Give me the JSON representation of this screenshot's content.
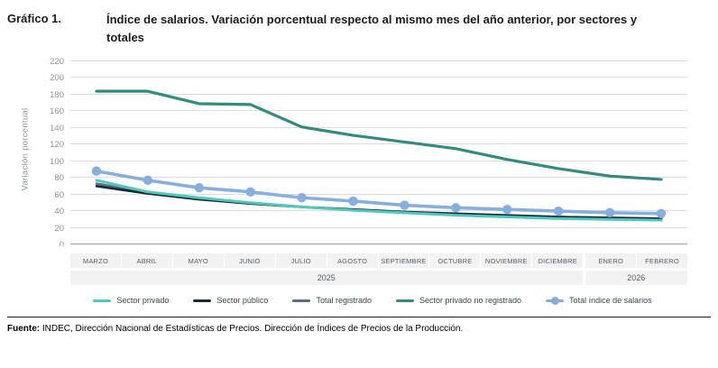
{
  "header": {
    "label": "Gráfico 1.",
    "title": "Índice de salarios. Variación porcentual respecto al mismo mes del año anterior, por sectores y totales"
  },
  "chart_data": {
    "type": "line",
    "title": "Índice de salarios. Variación porcentual respecto al mismo mes del año anterior, por sectores y totales",
    "ylabel": "Variación porcentual",
    "xlabel": "",
    "ylim": [
      0,
      220
    ],
    "ytick_step": 20,
    "grid": true,
    "legend_position": "bottom",
    "categories": [
      "MARZO",
      "ABRIL",
      "MAYO",
      "JUNIO",
      "JULIO",
      "AGOSTO",
      "SEPTIEMBRE",
      "OCTUBRE",
      "NOVIEMBRE",
      "DICIEMBRE",
      "ENERO",
      "FEBRERO"
    ],
    "year_groups": [
      {
        "label": "2025",
        "span": 10
      },
      {
        "label": "2026",
        "span": 2
      }
    ],
    "series": [
      {
        "id": "sector-privado",
        "name": "Sector privado",
        "color": "#4ec9bd",
        "width": 3,
        "marker": false,
        "z": 3,
        "values": [
          76,
          62,
          55,
          49,
          44,
          40,
          37,
          34,
          32,
          30,
          29,
          28
        ]
      },
      {
        "id": "sector-publico",
        "name": "Sector público",
        "color": "#1b2836",
        "width": 2.6,
        "marker": false,
        "z": 2,
        "values": [
          69,
          60,
          53,
          48,
          44,
          41,
          38,
          36,
          34,
          32,
          31,
          30
        ]
      },
      {
        "id": "total-registrado",
        "name": "Total registrado",
        "color": "#5e6e7e",
        "width": 2.6,
        "marker": false,
        "z": 1,
        "values": [
          72,
          61,
          54,
          48,
          44,
          40,
          37,
          35,
          33,
          31,
          30,
          29
        ]
      },
      {
        "id": "sector-privado-no-registrado",
        "name": "Sector privado no registrado",
        "color": "#338b7e",
        "width": 3.2,
        "marker": false,
        "z": 4,
        "values": [
          183,
          183,
          168,
          167,
          140,
          130,
          122,
          114,
          101,
          90,
          81,
          77
        ]
      },
      {
        "id": "total-indice-salarios",
        "name": "Total índice de salarios",
        "color": "#88aedd",
        "width": 3.6,
        "marker": true,
        "z": 5,
        "values": [
          87,
          76,
          67,
          62,
          55,
          51,
          46,
          43,
          41,
          39,
          37,
          36
        ]
      }
    ]
  },
  "footer": {
    "label": "Fuente:",
    "text": " INDEC, Dirección Nacional de Estadísticas de Precios. Dirección de Índices de Precios de la Producción."
  }
}
